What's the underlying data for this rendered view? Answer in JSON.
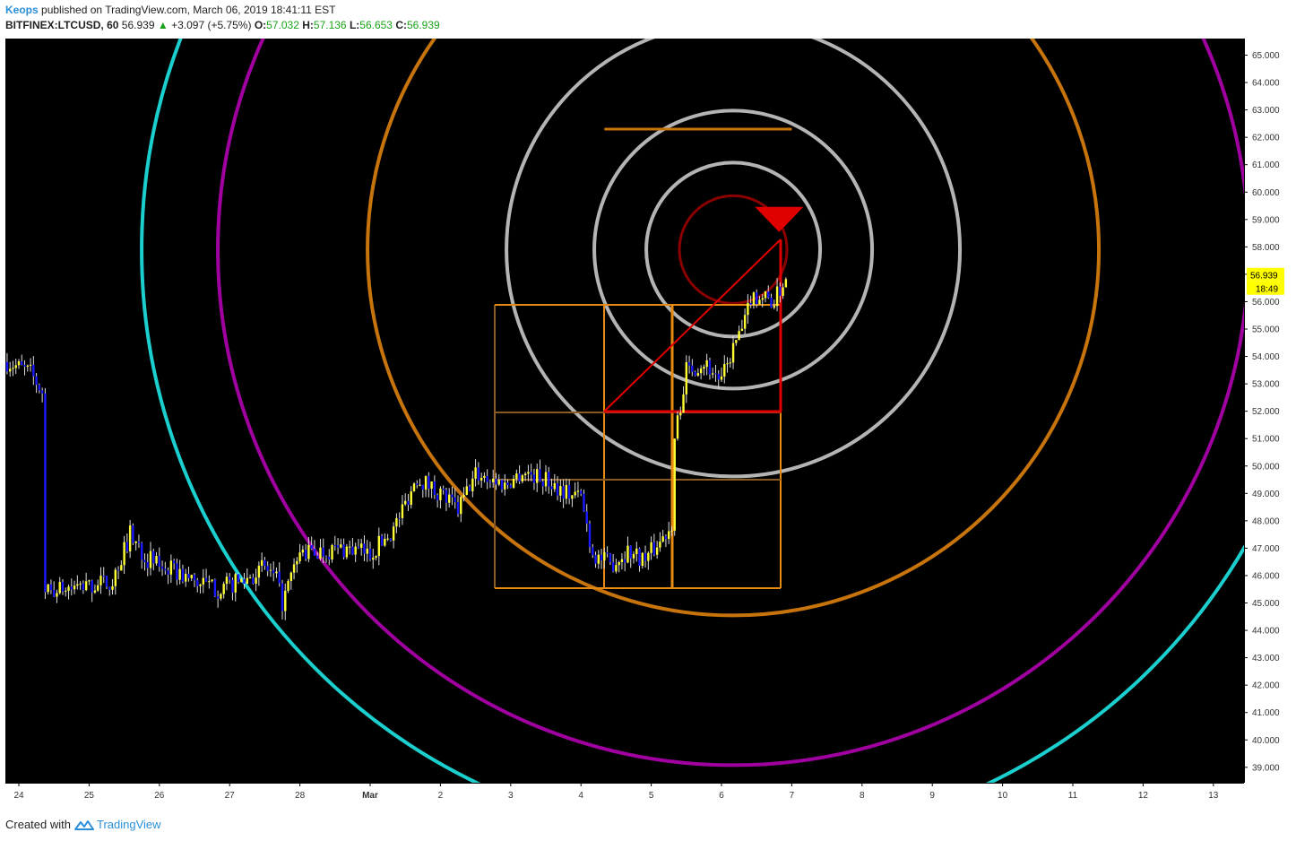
{
  "header": {
    "author": "Keops",
    "published_text": "published on TradingView.com, March 06, 2019 18:41:11 EST",
    "symbol": "BITFINEX:LTCUSD, 60",
    "last": "56.939",
    "change": "+3.097 (+5.75%)",
    "o_label": "O:",
    "o_value": "57.032",
    "h_label": "H:",
    "h_value": "57.136",
    "l_label": "L:",
    "l_value": "56.653",
    "c_label": "C:",
    "c_value": "56.939"
  },
  "footer": {
    "created_with": "Created with",
    "brand": "TradingView"
  },
  "colors": {
    "background": "#000000",
    "bull_candle": "#ffff33",
    "bear_candle": "#1a1aff",
    "cyan_arc": "#1ccfcf",
    "purple_arc": "#a000a0",
    "orange_arc": "#c8740c",
    "gray_arc": "#b4b4b4",
    "red": "#e00000",
    "dark_red": "#8b0000",
    "grid_orange": "#e68a10",
    "grid_brown": "#8a5a22",
    "price_label_bg": "#ffff00"
  },
  "chart_data": {
    "type": "candlestick",
    "timeframe": "60",
    "x_ticks": [
      "24",
      "25",
      "26",
      "27",
      "28",
      "Mar",
      "2",
      "3",
      "4",
      "5",
      "6",
      "7",
      "8",
      "9",
      "10",
      "11",
      "12",
      "13"
    ],
    "y_ticks": [
      "65.000",
      "64.000",
      "63.000",
      "62.000",
      "61.000",
      "60.000",
      "59.000",
      "58.000",
      "57.000",
      "56.000",
      "55.000",
      "54.000",
      "53.000",
      "52.000",
      "51.000",
      "50.000",
      "49.000",
      "48.000",
      "47.000",
      "46.000",
      "45.000",
      "44.000",
      "43.000",
      "42.000",
      "41.000",
      "40.000",
      "39.000"
    ],
    "ylim": [
      38.3,
      65.5
    ],
    "last_price_label": "56.939",
    "countdown_label": "18:49",
    "close_path": [
      [
        "2019-02-23T20:00",
        53.8
      ],
      [
        "2019-02-24T04:00",
        53.4
      ],
      [
        "2019-02-24T08:00",
        52.7
      ],
      [
        "2019-02-24T09:00",
        45.4
      ],
      [
        "2019-02-24T16:00",
        45.5
      ],
      [
        "2019-02-25T00:00",
        45.6
      ],
      [
        "2019-02-25T08:00",
        45.8
      ],
      [
        "2019-02-25T14:00",
        47.5
      ],
      [
        "2019-02-25T20:00",
        46.6
      ],
      [
        "2019-02-26T04:00",
        46.2
      ],
      [
        "2019-02-26T12:00",
        45.8
      ],
      [
        "2019-02-26T20:00",
        45.5
      ],
      [
        "2019-02-27T04:00",
        45.8
      ],
      [
        "2019-02-27T12:00",
        46.3
      ],
      [
        "2019-02-27T16:00",
        45.8
      ],
      [
        "2019-02-27T18:00",
        45.0
      ],
      [
        "2019-02-28T00:00",
        46.8
      ],
      [
        "2019-02-28T08:00",
        46.9
      ],
      [
        "2019-02-28T16:00",
        47.0
      ],
      [
        "2019-03-01T00:00",
        46.8
      ],
      [
        "2019-03-01T08:00",
        47.7
      ],
      [
        "2019-03-01T16:00",
        49.6
      ],
      [
        "2019-03-02T00:00",
        49.0
      ],
      [
        "2019-03-02T06:00",
        48.4
      ],
      [
        "2019-03-02T12:00",
        49.7
      ],
      [
        "2019-03-02T16:00",
        49.6
      ],
      [
        "2019-03-02T22:00",
        49.3
      ],
      [
        "2019-03-03T04:00",
        49.8
      ],
      [
        "2019-03-03T12:00",
        49.5
      ],
      [
        "2019-03-03T20:00",
        49.0
      ],
      [
        "2019-03-04T00:00",
        48.9
      ],
      [
        "2019-03-04T04:00",
        46.8
      ],
      [
        "2019-03-04T10:00",
        46.4
      ],
      [
        "2019-03-04T16:00",
        46.9
      ],
      [
        "2019-03-04T22:00",
        46.6
      ],
      [
        "2019-03-05T04:00",
        47.4
      ],
      [
        "2019-03-05T07:00",
        47.9
      ],
      [
        "2019-03-05T08:00",
        51.0
      ],
      [
        "2019-03-05T12:00",
        53.5
      ],
      [
        "2019-03-05T18:00",
        53.8
      ],
      [
        "2019-03-06T00:00",
        53.1
      ],
      [
        "2019-03-06T04:00",
        54.3
      ],
      [
        "2019-03-06T08:00",
        55.2
      ],
      [
        "2019-03-06T10:00",
        56.2
      ],
      [
        "2019-03-06T14:00",
        56.2
      ],
      [
        "2019-03-06T18:00",
        56.0
      ],
      [
        "2019-03-06T22:00",
        56.9
      ]
    ],
    "drawings": {
      "concentric_center": {
        "time": "2019-03-06T04:00",
        "price": 57.9
      },
      "red_triangle_marker": {
        "time": "2019-03-06T20:00",
        "price": 59.0
      },
      "horizontal_line": {
        "t1": "2019-03-04T08:00",
        "t2": "2019-03-07T00:00",
        "price": 62.3
      }
    }
  }
}
